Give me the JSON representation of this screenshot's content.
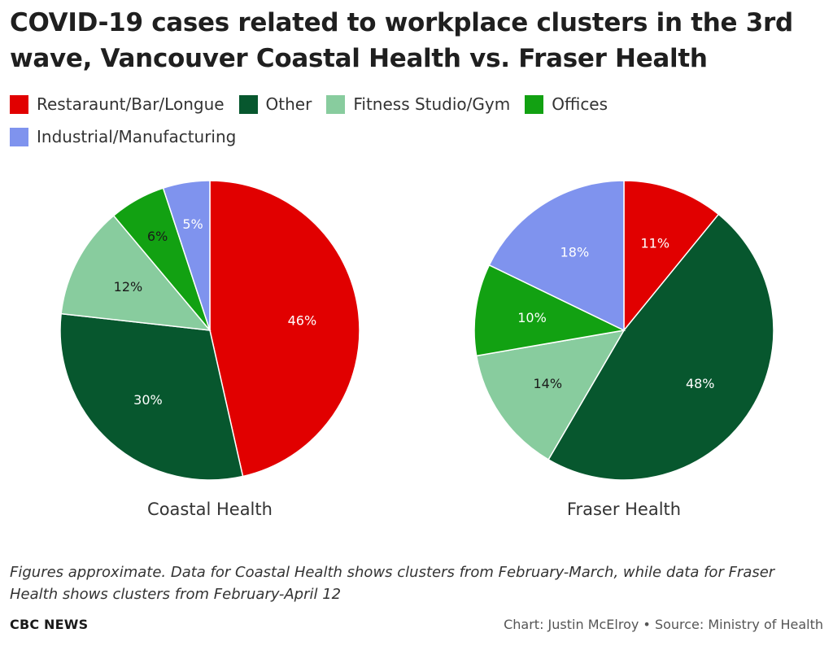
{
  "title": "COVID-19 cases related to workplace clusters in the 3rd wave, Vancouver Coastal Health vs. Fraser Health",
  "legend": [
    {
      "label": "Restaraunt/Bar/Longue",
      "color": "#e10000"
    },
    {
      "label": "Other",
      "color": "#07572e"
    },
    {
      "label": "Fitness Studio/Gym",
      "color": "#88cc9e"
    },
    {
      "label": "Offices",
      "color": "#12a112"
    },
    {
      "label": "Industrial/Manufacturing",
      "color": "#7f93ee"
    }
  ],
  "chart_data": [
    {
      "type": "pie",
      "title": "Coastal Health",
      "slices": [
        {
          "category": "Restaraunt/Bar/Longue",
          "value": 46,
          "label": "46%",
          "color": "#e10000",
          "label_color": "#ffffff"
        },
        {
          "category": "Other",
          "value": 30,
          "label": "30%",
          "color": "#07572e",
          "label_color": "#ffffff"
        },
        {
          "category": "Fitness Studio/Gym",
          "value": 12,
          "label": "12%",
          "color": "#88cc9e",
          "label_color": "#1a1a1a"
        },
        {
          "category": "Offices",
          "value": 6,
          "label": "6%",
          "color": "#12a112",
          "label_color": "#1a1a1a"
        },
        {
          "category": "Industrial/Manufacturing",
          "value": 5,
          "label": "5%",
          "color": "#7f93ee",
          "label_color": "#ffffff"
        }
      ]
    },
    {
      "type": "pie",
      "title": "Fraser Health",
      "slices": [
        {
          "category": "Restaraunt/Bar/Longue",
          "value": 11,
          "label": "11%",
          "color": "#e10000",
          "label_color": "#ffffff"
        },
        {
          "category": "Other",
          "value": 48,
          "label": "48%",
          "color": "#07572e",
          "label_color": "#ffffff"
        },
        {
          "category": "Fitness Studio/Gym",
          "value": 14,
          "label": "14%",
          "color": "#88cc9e",
          "label_color": "#1a1a1a"
        },
        {
          "category": "Offices",
          "value": 10,
          "label": "10%",
          "color": "#12a112",
          "label_color": "#ffffff"
        },
        {
          "category": "Industrial/Manufacturing",
          "value": 18,
          "label": "18%",
          "color": "#7f93ee",
          "label_color": "#ffffff"
        }
      ]
    }
  ],
  "footnote": "Figures approximate. Data for Coastal Health shows clusters from February-March, while data for Fraser Health shows clusters from February-April 12",
  "brand": "CBC NEWS",
  "credit": "Chart: Justin McElroy • Source: Ministry of Health"
}
